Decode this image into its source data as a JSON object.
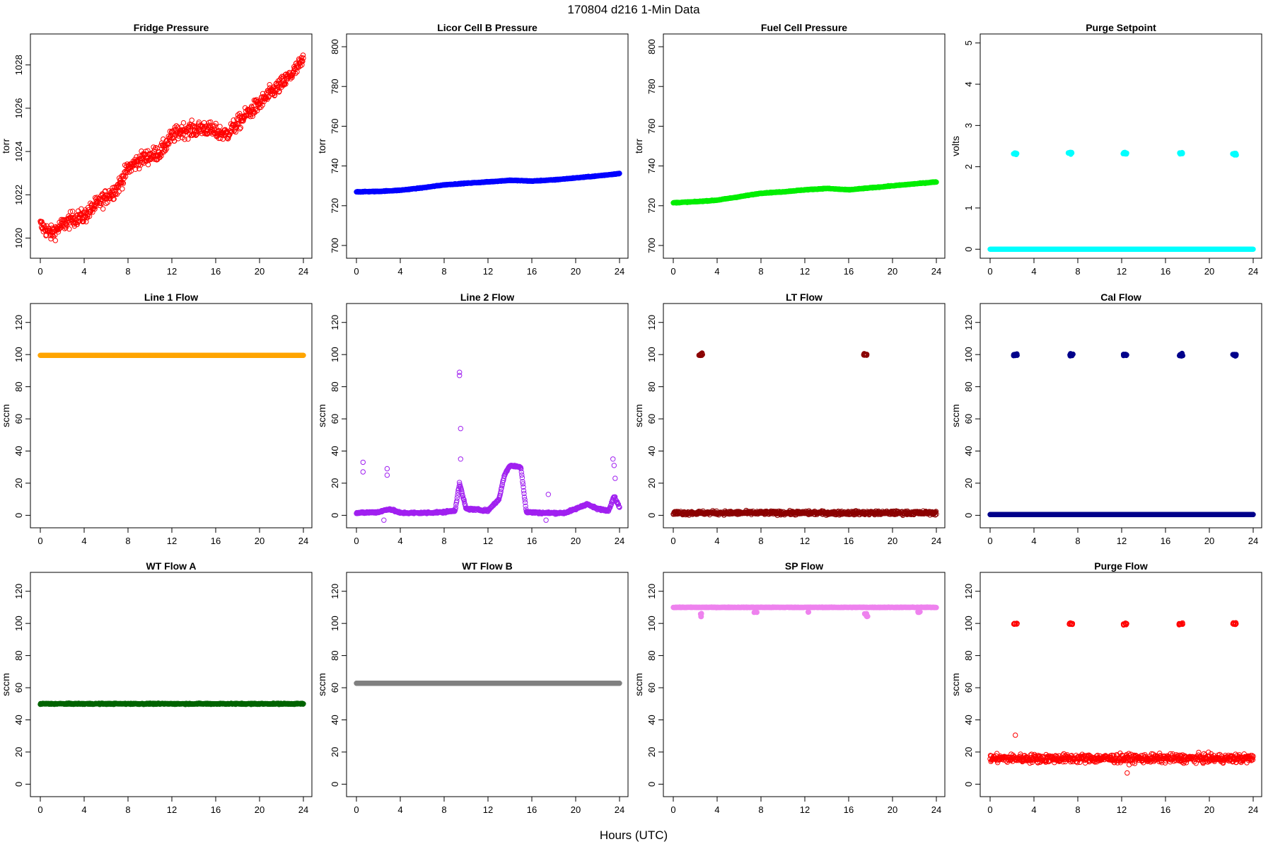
{
  "figure": {
    "title": "170804    d216    1-Min Data",
    "xlabel": "Hours (UTC)"
  },
  "chart_data": [
    {
      "type": "scatter",
      "title": "Fridge Pressure",
      "ylabel": "torr",
      "xlim": [
        0,
        24
      ],
      "ylim": [
        1019.2,
        1029.3
      ],
      "xticks": [
        0,
        4,
        8,
        12,
        16,
        20,
        24
      ],
      "yticks": [
        1020,
        1022,
        1024,
        1026,
        1028
      ],
      "color": "#ff0000",
      "marker": "open-circle",
      "series": [
        {
          "x": [
            0,
            1,
            2,
            3,
            4,
            5,
            6,
            7,
            8,
            9,
            10,
            11,
            12,
            13,
            14,
            15,
            16,
            17,
            18,
            19,
            20,
            21,
            22,
            23,
            24
          ],
          "y": [
            1020.6,
            1020.2,
            1020.6,
            1020.9,
            1021.0,
            1021.5,
            1021.9,
            1022.3,
            1023.2,
            1023.6,
            1023.8,
            1024.0,
            1024.7,
            1025.0,
            1025.0,
            1025.1,
            1024.9,
            1024.8,
            1025.3,
            1025.8,
            1026.2,
            1026.7,
            1027.1,
            1027.6,
            1028.2
          ],
          "spread": 0.6
        }
      ]
    },
    {
      "type": "scatter",
      "title": "Licor Cell B Pressure",
      "ylabel": "torr",
      "xlim": [
        0,
        24
      ],
      "ylim": [
        695,
        805
      ],
      "xticks": [
        0,
        4,
        8,
        12,
        16,
        20,
        24
      ],
      "yticks": [
        700,
        720,
        740,
        760,
        780,
        800
      ],
      "color": "#0000ff",
      "marker": "filled-circle",
      "series": [
        {
          "x": [
            0,
            2,
            4,
            6,
            8,
            10,
            12,
            14,
            16,
            18,
            20,
            22,
            24
          ],
          "y": [
            727,
            727.2,
            727.8,
            729,
            730.5,
            731.3,
            732,
            732.8,
            732.4,
            733,
            734,
            735,
            736.2
          ],
          "spread": 0.3
        }
      ]
    },
    {
      "type": "scatter",
      "title": "Fuel Cell Pressure",
      "ylabel": "torr",
      "xlim": [
        0,
        24
      ],
      "ylim": [
        695,
        805
      ],
      "xticks": [
        0,
        4,
        8,
        12,
        16,
        20,
        24
      ],
      "yticks": [
        700,
        720,
        740,
        760,
        780,
        800
      ],
      "color": "#00ee00",
      "marker": "filled-circle",
      "series": [
        {
          "x": [
            0,
            2,
            4,
            6,
            8,
            10,
            12,
            14,
            16,
            18,
            20,
            22,
            24
          ],
          "y": [
            721.5,
            722,
            722.8,
            724.5,
            726.3,
            727,
            728,
            728.7,
            728,
            729,
            730,
            731,
            732
          ],
          "spread": 0.3
        }
      ]
    },
    {
      "type": "scatter",
      "title": "Purge Setpoint",
      "ylabel": "volts",
      "xlim": [
        0,
        24
      ],
      "ylim": [
        -0.15,
        5.15
      ],
      "xticks": [
        0,
        4,
        8,
        12,
        16,
        20,
        24
      ],
      "yticks": [
        0,
        1,
        2,
        3,
        4,
        5
      ],
      "color": "#00ffff",
      "marker": "filled-circle",
      "baseline": 0,
      "events": [
        {
          "x": 2.3,
          "y": 2.32
        },
        {
          "x": 7.3,
          "y": 2.34
        },
        {
          "x": 12.3,
          "y": 2.33
        },
        {
          "x": 17.4,
          "y": 2.33
        },
        {
          "x": 22.3,
          "y": 2.31
        }
      ]
    },
    {
      "type": "scatter",
      "title": "Line 1 Flow",
      "ylabel": "sccm",
      "xlim": [
        0,
        24
      ],
      "ylim": [
        -6,
        130
      ],
      "xticks": [
        0,
        4,
        8,
        12,
        16,
        20,
        24
      ],
      "yticks": [
        0,
        20,
        40,
        60,
        80,
        100,
        120
      ],
      "color": "#ffa500",
      "marker": "filled-circle",
      "series": [
        {
          "x": [
            0,
            24
          ],
          "y": [
            99.5,
            99.5
          ],
          "spread": 0
        }
      ]
    },
    {
      "type": "scatter",
      "title": "Line 2 Flow",
      "ylabel": "sccm",
      "xlim": [
        0,
        24
      ],
      "ylim": [
        -6,
        130
      ],
      "xticks": [
        0,
        4,
        8,
        12,
        16,
        20,
        24
      ],
      "yticks": [
        0,
        20,
        40,
        60,
        80,
        100,
        120
      ],
      "color": "#a020f0",
      "marker": "open-circle",
      "series": [
        {
          "x": [
            0,
            2,
            3,
            4,
            6,
            8,
            9,
            9.4,
            10,
            12,
            13,
            13.5,
            14,
            15,
            15.5,
            17,
            19,
            20,
            21,
            22,
            23,
            23.5,
            24
          ],
          "y": [
            1.5,
            2,
            4,
            1.5,
            1.5,
            2,
            3,
            20,
            4,
            3,
            10,
            25,
            31,
            30,
            2,
            1.5,
            1.5,
            4,
            7,
            4,
            3,
            12,
            5
          ],
          "spread": 1.0
        }
      ],
      "outliers": [
        {
          "x": 9.4,
          "y": 89
        },
        {
          "x": 9.4,
          "y": 87
        },
        {
          "x": 9.5,
          "y": 54
        },
        {
          "x": 9.5,
          "y": 35
        },
        {
          "x": 0.6,
          "y": 33
        },
        {
          "x": 0.6,
          "y": 27
        },
        {
          "x": 2.8,
          "y": 29
        },
        {
          "x": 2.8,
          "y": 25
        },
        {
          "x": 23.4,
          "y": 35
        },
        {
          "x": 23.5,
          "y": 31
        },
        {
          "x": 23.6,
          "y": 23
        },
        {
          "x": 2.5,
          "y": -3
        },
        {
          "x": 17.5,
          "y": 13
        },
        {
          "x": 17.3,
          "y": -3
        }
      ]
    },
    {
      "type": "scatter",
      "title": "LT Flow",
      "ylabel": "sccm",
      "xlim": [
        0,
        24
      ],
      "ylim": [
        -6,
        130
      ],
      "xticks": [
        0,
        4,
        8,
        12,
        16,
        20,
        24
      ],
      "yticks": [
        0,
        20,
        40,
        60,
        80,
        100,
        120
      ],
      "color": "#8b0000",
      "marker": "open-circle",
      "baseline": 1.5,
      "baseline_spread": 2.0,
      "events": [
        {
          "x": 2.5,
          "y": 100
        },
        {
          "x": 17.5,
          "y": 100
        }
      ]
    },
    {
      "type": "scatter",
      "title": "Cal Flow",
      "ylabel": "sccm",
      "xlim": [
        0,
        24
      ],
      "ylim": [
        -6,
        130
      ],
      "xticks": [
        0,
        4,
        8,
        12,
        16,
        20,
        24
      ],
      "yticks": [
        0,
        20,
        40,
        60,
        80,
        100,
        120
      ],
      "color": "#00008b",
      "marker": "filled-circle",
      "baseline": 0.5,
      "events": [
        {
          "x": 2.3,
          "y": 99.8
        },
        {
          "x": 7.4,
          "y": 99.8
        },
        {
          "x": 12.3,
          "y": 99.8
        },
        {
          "x": 17.4,
          "y": 99.8
        },
        {
          "x": 22.3,
          "y": 99.8
        }
      ]
    },
    {
      "type": "scatter",
      "title": "WT Flow A",
      "ylabel": "sccm",
      "xlim": [
        0,
        24
      ],
      "ylim": [
        -6,
        130
      ],
      "xticks": [
        0,
        4,
        8,
        12,
        16,
        20,
        24
      ],
      "yticks": [
        0,
        20,
        40,
        60,
        80,
        100,
        120
      ],
      "color": "#006400",
      "marker": "filled-circle",
      "series": [
        {
          "x": [
            0,
            24
          ],
          "y": [
            50,
            50
          ],
          "spread": 0.6
        }
      ]
    },
    {
      "type": "scatter",
      "title": "WT Flow B",
      "ylabel": "sccm",
      "xlim": [
        0,
        24
      ],
      "ylim": [
        -6,
        130
      ],
      "xticks": [
        0,
        4,
        8,
        12,
        16,
        20,
        24
      ],
      "yticks": [
        0,
        20,
        40,
        60,
        80,
        100,
        120
      ],
      "color": "#808080",
      "marker": "filled-circle",
      "series": [
        {
          "x": [
            0,
            24
          ],
          "y": [
            62.8,
            62.8
          ],
          "spread": 0
        }
      ]
    },
    {
      "type": "scatter",
      "title": "SP Flow",
      "ylabel": "sccm",
      "xlim": [
        0,
        24
      ],
      "ylim": [
        -6,
        130
      ],
      "xticks": [
        0,
        4,
        8,
        12,
        16,
        20,
        24
      ],
      "yticks": [
        0,
        20,
        40,
        60,
        80,
        100,
        120
      ],
      "color": "#ee82ee",
      "marker": "filled-circle",
      "series": [
        {
          "x": [
            0,
            24
          ],
          "y": [
            110,
            110
          ],
          "spread": 0.3
        }
      ],
      "dips": [
        {
          "x": 2.5,
          "y": 106
        },
        {
          "x": 2.6,
          "y": 104.5
        },
        {
          "x": 7.5,
          "y": 107
        },
        {
          "x": 12.3,
          "y": 107
        },
        {
          "x": 17.5,
          "y": 106
        },
        {
          "x": 17.6,
          "y": 104.5
        },
        {
          "x": 22.4,
          "y": 107
        }
      ]
    },
    {
      "type": "scatter",
      "title": "Purge Flow",
      "ylabel": "sccm",
      "xlim": [
        0,
        24
      ],
      "ylim": [
        -6,
        130
      ],
      "xticks": [
        0,
        4,
        8,
        12,
        16,
        20,
        24
      ],
      "yticks": [
        0,
        20,
        40,
        60,
        80,
        100,
        120
      ],
      "color": "#ff0000",
      "marker": "open-circle",
      "baseline": 16,
      "baseline_spread": 4.5,
      "events": [
        {
          "x": 2.3,
          "y": 99.8
        },
        {
          "x": 7.4,
          "y": 99.8
        },
        {
          "x": 12.3,
          "y": 99.8
        },
        {
          "x": 17.4,
          "y": 99.8
        },
        {
          "x": 22.3,
          "y": 99.8
        }
      ],
      "outliers": [
        {
          "x": 2.3,
          "y": 30.5
        },
        {
          "x": 12.5,
          "y": 7
        }
      ]
    }
  ]
}
